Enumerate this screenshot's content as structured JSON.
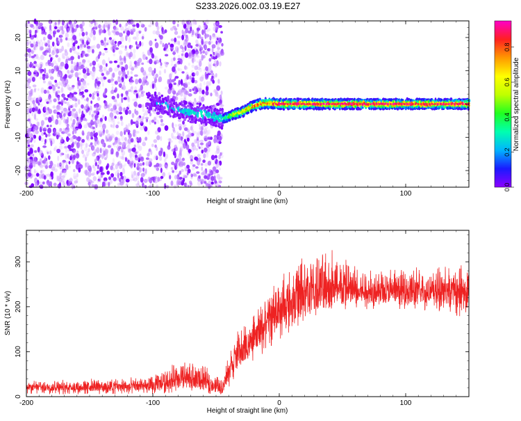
{
  "page": {
    "title": "S233.2026.002.03.19.E27"
  },
  "chart_data": [
    {
      "type": "heatmap",
      "xlabel": "Height of straight line (km)",
      "ylabel": "Frequency (Hz)",
      "xlim": [
        -200,
        150
      ],
      "ylim": [
        -25,
        25
      ],
      "x_ticks": [
        -200,
        -100,
        0,
        100
      ],
      "y_ticks": [
        -20,
        -10,
        0,
        10,
        20
      ],
      "grid": false,
      "colorbar": {
        "label": "Normalized spectral amplitude",
        "range": [
          0,
          0.95
        ],
        "ticks": [
          "0.0",
          "0.2",
          "0.4",
          "0.6",
          "0.8"
        ],
        "colormap": [
          "#8c00ff",
          "#1a1aff",
          "#00b4ff",
          "#00ffb0",
          "#20ff20",
          "#c0ff00",
          "#ffff00",
          "#ff9900",
          "#ff2020",
          "#ff00c8"
        ]
      },
      "noise_region": {
        "x_range": [
          -200,
          -45
        ],
        "amplitude_range": [
          0.0,
          0.25
        ],
        "color_low": "#e6ccff",
        "color_high": "#7a00ff"
      },
      "signal_trace": {
        "x": [
          -100,
          -90,
          -80,
          -70,
          -60,
          -50,
          -45,
          -40,
          -35,
          -30,
          -25,
          -20,
          -15,
          -10,
          -5,
          0,
          10,
          20,
          30,
          40,
          50,
          60,
          70,
          80,
          90,
          100,
          110,
          120,
          130,
          140,
          150
        ],
        "frequency": [
          1.0,
          -0.5,
          -1.5,
          -2.5,
          -3.0,
          -4.0,
          -4.5,
          -3.8,
          -3.0,
          -2.5,
          -1.5,
          -0.5,
          0.0,
          0.2,
          0.2,
          0.0,
          0.0,
          0.0,
          0.0,
          0.0,
          0.0,
          0.0,
          0.0,
          0.0,
          0.0,
          0.0,
          0.0,
          0.0,
          0.0,
          0.0,
          0.0
        ],
        "peak_amplitude": [
          0.2,
          0.25,
          0.25,
          0.3,
          0.3,
          0.3,
          0.3,
          0.5,
          0.6,
          0.7,
          0.75,
          0.8,
          0.85,
          0.85,
          0.9,
          0.9,
          0.9,
          0.9,
          0.9,
          0.9,
          0.9,
          0.9,
          0.9,
          0.9,
          0.9,
          0.9,
          0.9,
          0.9,
          0.9,
          0.9,
          0.9
        ]
      }
    },
    {
      "type": "line",
      "xlabel": "Height of straight line (km)",
      "ylabel": "SNR (10 * v/v)",
      "xlim": [
        -200,
        150
      ],
      "ylim": [
        0,
        370
      ],
      "x_ticks": [
        -200,
        -100,
        0,
        100
      ],
      "y_ticks": [
        0,
        100,
        200,
        300
      ],
      "grid": false,
      "series": [
        {
          "color": "#ee2222",
          "envelope": {
            "x": [
              -200,
              -150,
              -100,
              -80,
              -70,
              -60,
              -50,
              -45,
              -40,
              -35,
              -30,
              -25,
              -20,
              -15,
              -10,
              -5,
              0,
              5,
              10,
              15,
              20,
              25,
              30,
              40,
              50,
              60,
              70,
              80,
              90,
              100,
              110,
              120,
              130,
              140,
              150
            ],
            "low": [
              5,
              5,
              5,
              10,
              10,
              8,
              5,
              5,
              20,
              40,
              55,
              70,
              80,
              90,
              100,
              115,
              125,
              135,
              150,
              155,
              165,
              175,
              180,
              185,
              190,
              190,
              195,
              195,
              195,
              195,
              190,
              190,
              190,
              180,
              175
            ],
            "high": [
              35,
              40,
              45,
              80,
              80,
              70,
              50,
              40,
              100,
              140,
              155,
              165,
              180,
              210,
              230,
              250,
              265,
              280,
              300,
              310,
              320,
              330,
              315,
              340,
              320,
              300,
              290,
              290,
              285,
              285,
              290,
              285,
              290,
              300,
              290
            ],
            "mean": [
              20,
              20,
              22,
              35,
              35,
              30,
              20,
              15,
              55,
              80,
              95,
              110,
              125,
              145,
              160,
              175,
              185,
              195,
              205,
              210,
              215,
              220,
              225,
              230,
              230,
              230,
              230,
              230,
              230,
              230,
              230,
              230,
              230,
              230,
              230
            ]
          }
        }
      ]
    }
  ]
}
